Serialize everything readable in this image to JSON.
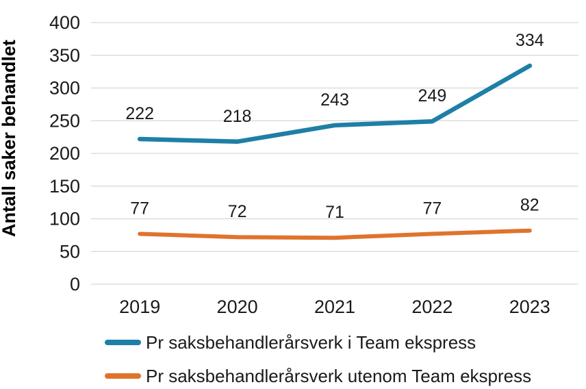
{
  "chart_data": {
    "type": "line",
    "categories": [
      "2019",
      "2020",
      "2021",
      "2022",
      "2023"
    ],
    "series": [
      {
        "name": "Pr saksbehandlerårsverk i Team ekspress",
        "values": [
          222,
          218,
          243,
          249,
          334
        ],
        "color": "#1f7fa6"
      },
      {
        "name": "Pr saksbehandlerårsverk utenom Team ekspress",
        "values": [
          77,
          72,
          71,
          77,
          82
        ],
        "color": "#e0732c"
      }
    ],
    "title": "",
    "xlabel": "",
    "ylabel": "Antall saker behandlet",
    "ylim": [
      0,
      400
    ],
    "yticks": [
      0,
      50,
      100,
      150,
      200,
      250,
      300,
      350,
      400
    ],
    "grid": true,
    "data_labels": true,
    "legend_position": "bottom",
    "gridline_color": "#d6d6d6",
    "text_color": "#1a1a1a",
    "background_color": "#ffffff"
  }
}
